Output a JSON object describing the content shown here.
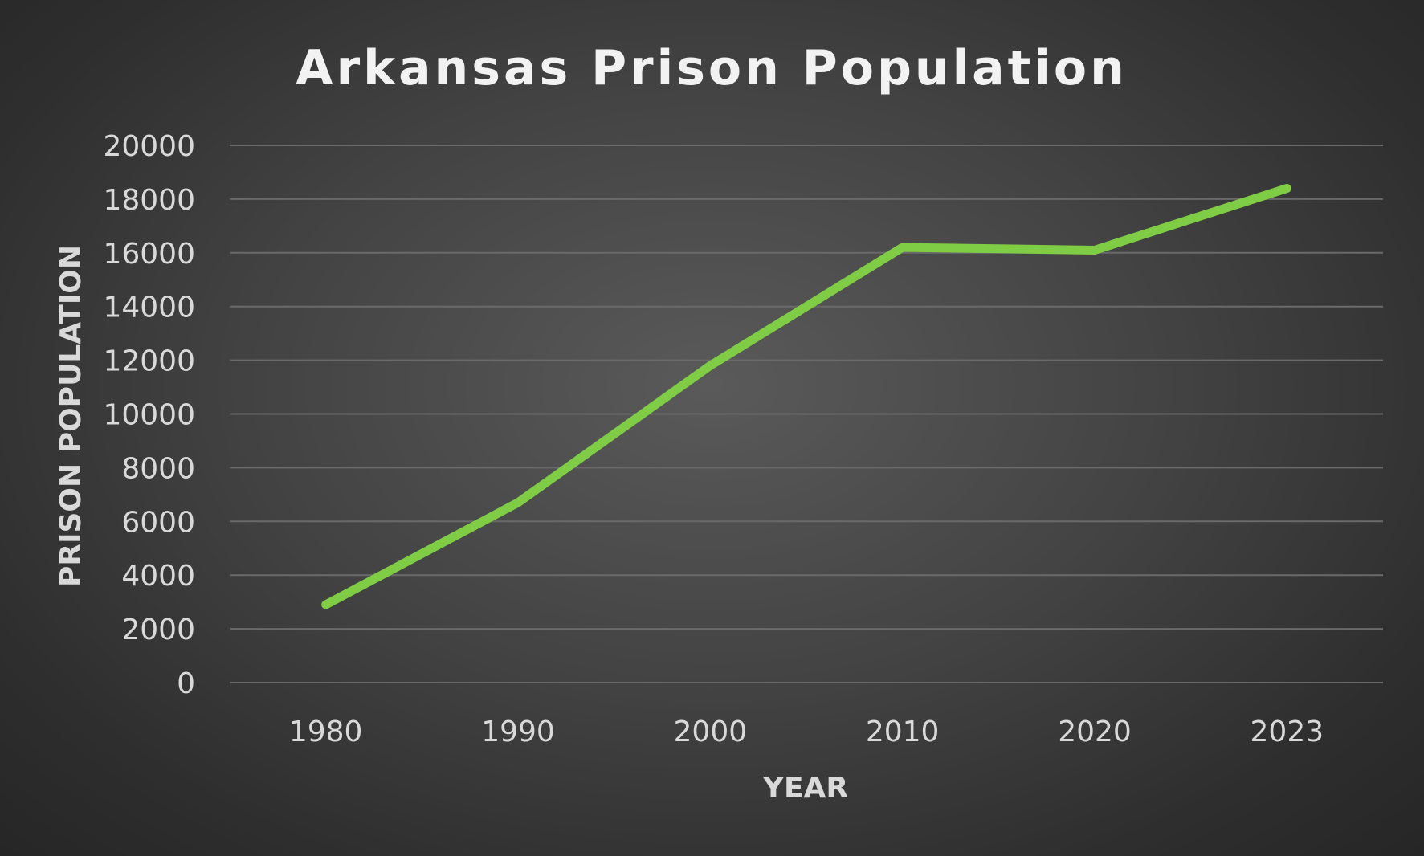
{
  "chart_data": {
    "type": "line",
    "title": "Arkansas Prison Population",
    "xlabel": "YEAR",
    "ylabel": "PRISON POPULATION",
    "categories": [
      "1980",
      "1990",
      "2000",
      "2010",
      "2020",
      "2023"
    ],
    "series": [
      {
        "values": [
          2900,
          6700,
          11800,
          16200,
          16100,
          18400
        ],
        "color": "#7fcc45"
      }
    ],
    "yticks": [
      0,
      2000,
      4000,
      6000,
      8000,
      10000,
      12000,
      14000,
      16000,
      18000,
      20000
    ],
    "ylim": [
      0,
      20000
    ],
    "grid": true,
    "legend": "none"
  }
}
